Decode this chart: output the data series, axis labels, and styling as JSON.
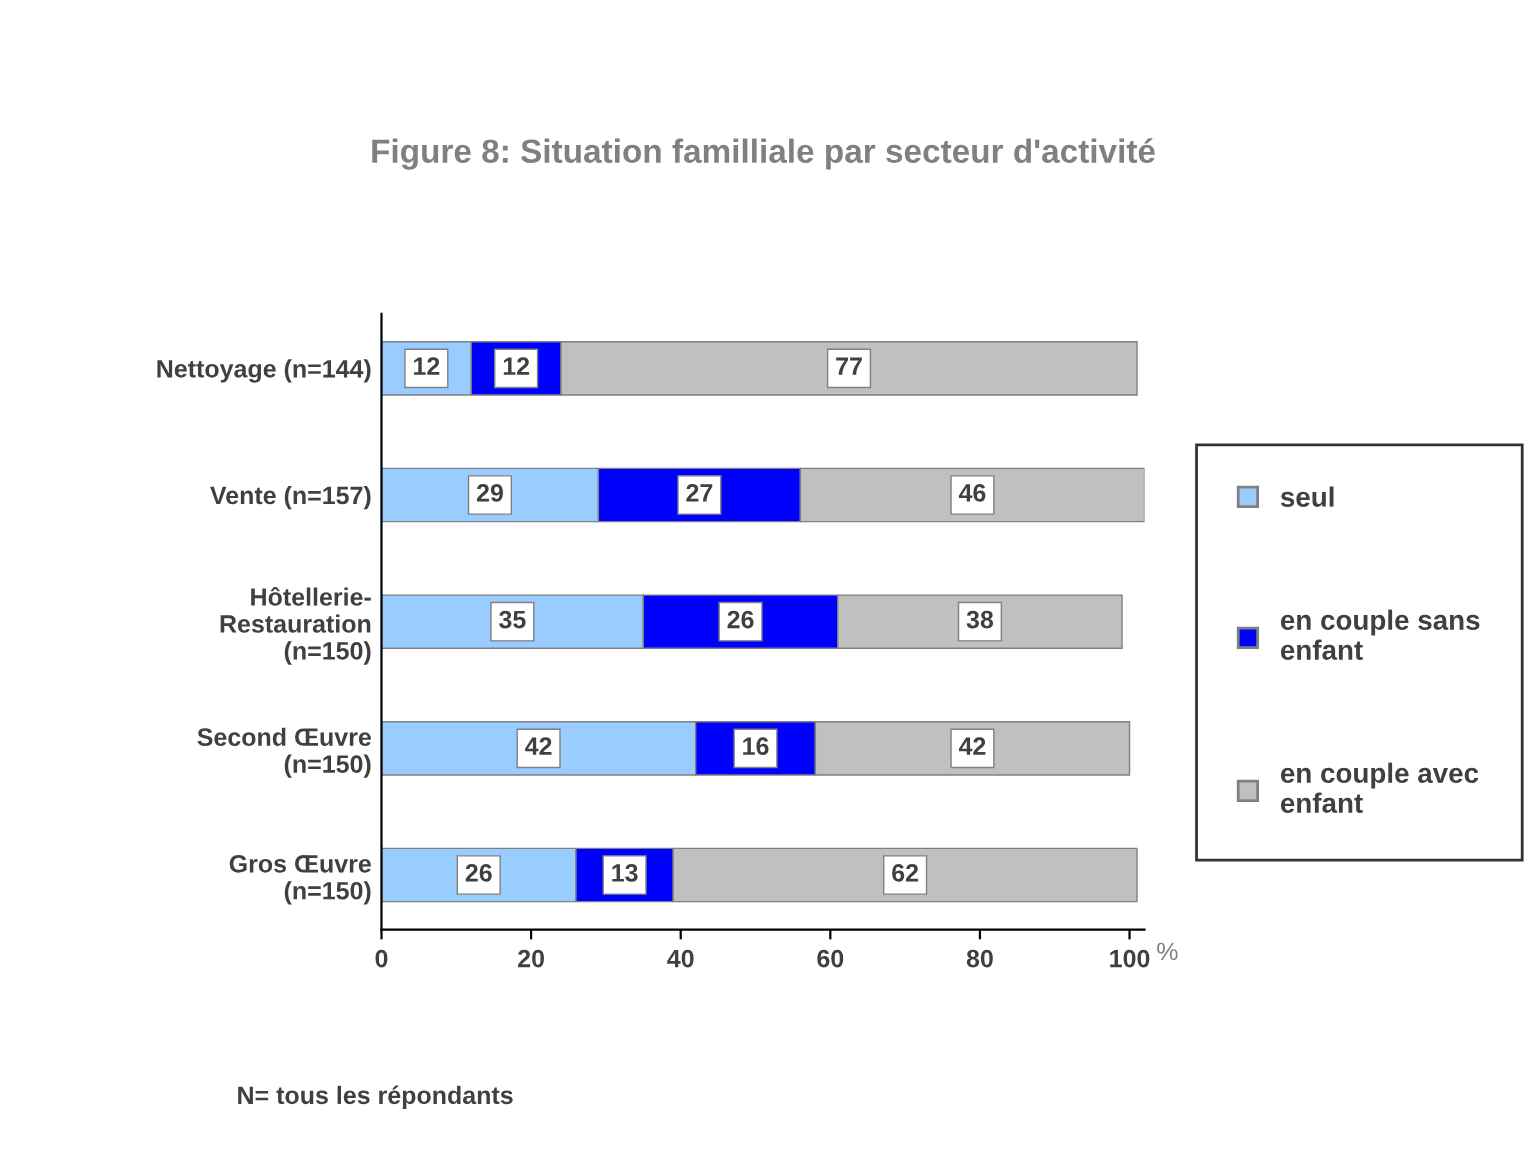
{
  "chart_data": {
    "type": "bar",
    "orientation": "horizontal",
    "stacked": true,
    "title": "Figure 8: Situation familliale par secteur d'activité",
    "xlabel": "%",
    "categories": [
      "Nettoyage (n=144)",
      "Vente (n=157)",
      "Hôtellerie-\nRestauration\n(n=150)",
      "Second Œuvre\n(n=150)",
      "Gros Œuvre\n(n=150)"
    ],
    "series": [
      {
        "name": "seul",
        "color": "#99ccff",
        "values": [
          12,
          29,
          35,
          42,
          26
        ]
      },
      {
        "name": "en couple sans\nenfant",
        "color": "#0000ff",
        "values": [
          12,
          27,
          26,
          16,
          13
        ]
      },
      {
        "name": "en couple avec\nenfant",
        "color": "#c0c0c0",
        "values": [
          77,
          46,
          38,
          42,
          62
        ]
      }
    ],
    "xlim": [
      0,
      102
    ],
    "xticks": [
      0,
      20,
      40,
      60,
      80,
      100
    ],
    "data_labels": true,
    "grid": false,
    "legend": "right",
    "annotations": [
      "N= tous les répondants"
    ]
  }
}
